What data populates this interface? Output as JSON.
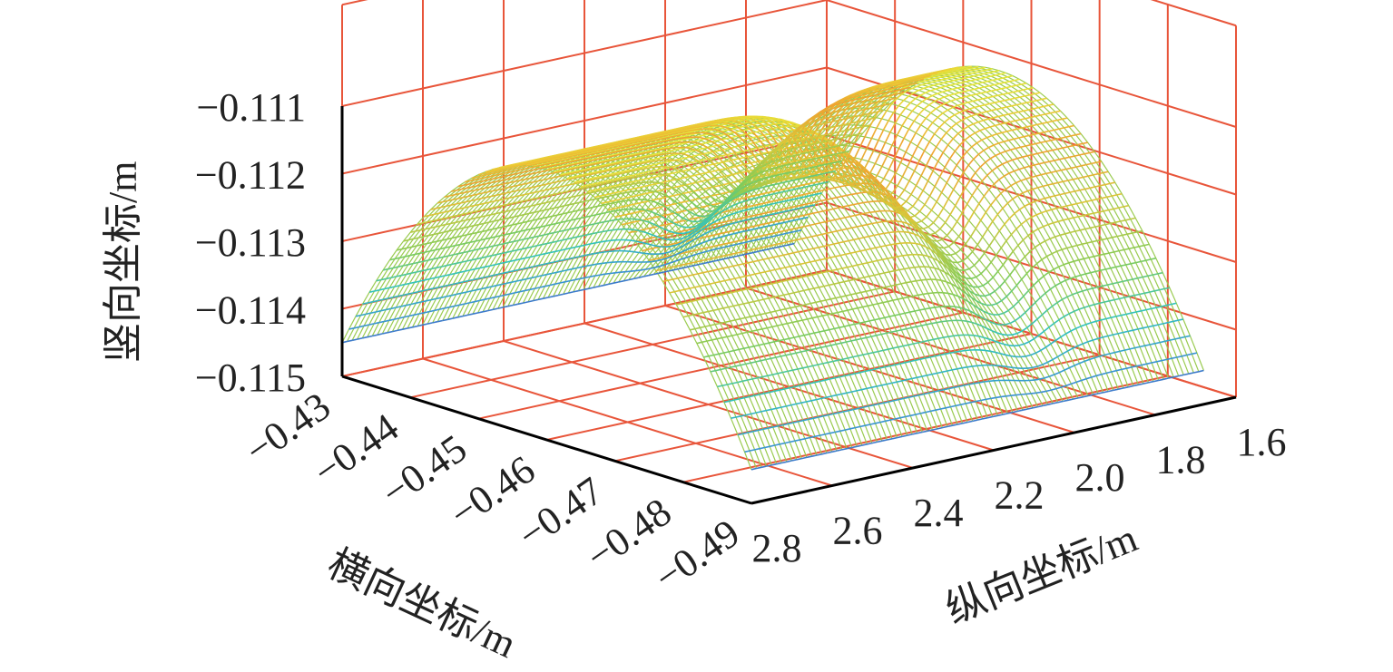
{
  "chart_data": {
    "type": "surface3d",
    "colors": {
      "grid": "#e8553a",
      "axis": "#000000",
      "colormap": [
        "#3c3bb0",
        "#3a8fd4",
        "#30c2c0",
        "#7fcc5a",
        "#d9c83a",
        "#f0a030",
        "#e8e83a"
      ]
    },
    "axes": {
      "x": {
        "label": "横向坐标/m",
        "ticks": [
          "−0.43",
          "−0.44",
          "−0.45",
          "−0.46",
          "−0.47",
          "−0.48",
          "−0.49"
        ],
        "range": [
          -0.49,
          -0.43
        ]
      },
      "y": {
        "label": "纵向坐标/m",
        "ticks": [
          "2.8",
          "2.6",
          "2.4",
          "2.2",
          "2.0",
          "1.8",
          "1.6"
        ],
        "range": [
          1.6,
          2.8
        ]
      },
      "z": {
        "label": "竖向坐标/m",
        "ticks": [
          "−0.111",
          "−0.112",
          "−0.113",
          "−0.114",
          "−0.115"
        ],
        "range": [
          -0.115,
          -0.111
        ]
      }
    },
    "surface": {
      "description_free": true,
      "ridge_z": -0.111,
      "edge_z": -0.1145,
      "sag_center_y": 2.05,
      "sag_depth": 0.0012
    },
    "grid": true
  }
}
